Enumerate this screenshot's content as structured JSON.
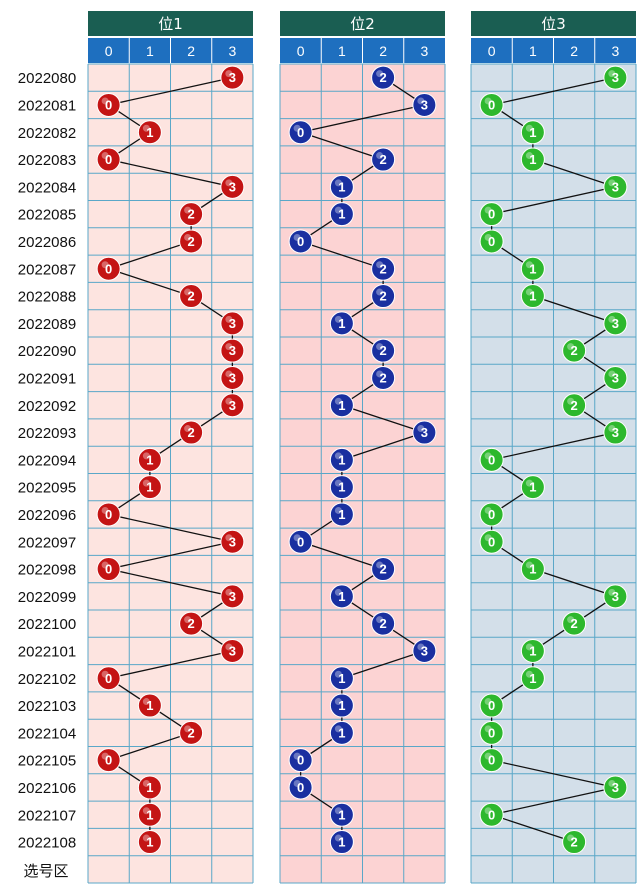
{
  "chart_data": {
    "type": "scatter",
    "footer_label": "选号区",
    "digits": [
      "0",
      "1",
      "2",
      "3"
    ],
    "periods": [
      "2022080",
      "2022081",
      "2022082",
      "2022083",
      "2022084",
      "2022085",
      "2022086",
      "2022087",
      "2022088",
      "2022089",
      "2022090",
      "2022091",
      "2022092",
      "2022093",
      "2022094",
      "2022095",
      "2022096",
      "2022097",
      "2022098",
      "2022099",
      "2022100",
      "2022101",
      "2022102",
      "2022103",
      "2022104",
      "2022105",
      "2022106",
      "2022107",
      "2022108"
    ],
    "series": [
      {
        "name": "位1",
        "values": [
          3,
          0,
          1,
          0,
          3,
          2,
          2,
          0,
          2,
          3,
          3,
          3,
          3,
          2,
          1,
          1,
          0,
          3,
          0,
          3,
          2,
          3,
          0,
          1,
          2,
          0,
          1,
          1,
          1
        ],
        "ball_color": "#c41414",
        "bg_color": "#fde4e0"
      },
      {
        "name": "位2",
        "values": [
          2,
          3,
          0,
          2,
          1,
          1,
          0,
          2,
          2,
          1,
          2,
          2,
          1,
          3,
          1,
          1,
          1,
          0,
          2,
          1,
          2,
          3,
          1,
          1,
          1,
          0,
          0,
          1,
          1
        ],
        "ball_color": "#1a2fa0",
        "bg_color": "#fcd3d3"
      },
      {
        "name": "位3",
        "values": [
          3,
          0,
          1,
          1,
          3,
          0,
          0,
          1,
          1,
          3,
          2,
          3,
          2,
          3,
          0,
          1,
          0,
          0,
          1,
          3,
          2,
          1,
          1,
          0,
          0,
          0,
          3,
          0,
          2
        ],
        "ball_color": "#2db82d",
        "bg_color": "#d3dfe9"
      }
    ],
    "colors": {
      "title_bar": "#1a5e52",
      "header_bar": "#1e6fbf",
      "grid_line": "#5aa7c8"
    }
  }
}
